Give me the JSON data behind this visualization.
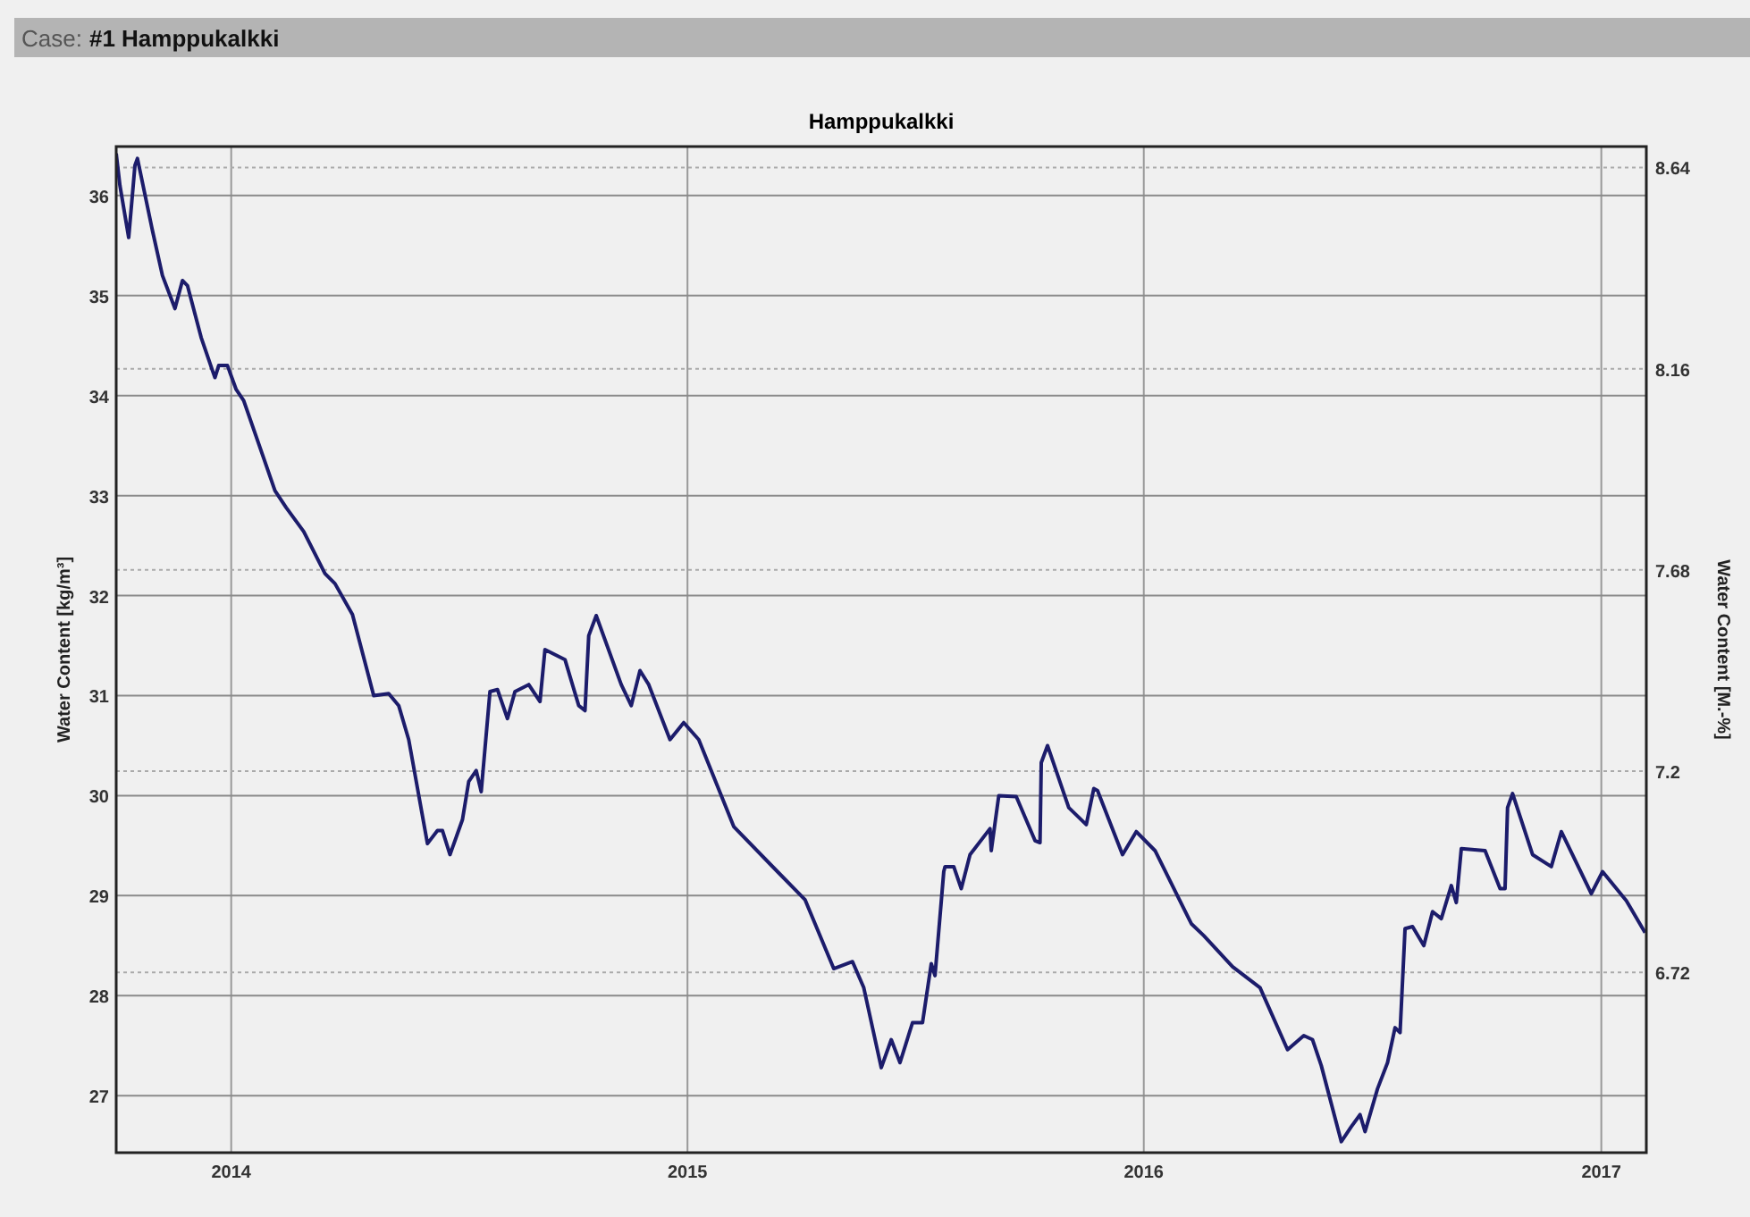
{
  "chart_data": {
    "type": "line",
    "title": "Hamppukalkki",
    "subtitle": "Case: #1 Hamppukalkki",
    "ylabel": "Water Content [kg/m³]",
    "y2label": "Water Content [M.-%]",
    "xlim": [
      "2013-10-01",
      "2017-02-06"
    ],
    "xticks": [
      {
        "value": "2014-01-01",
        "label": "2014"
      },
      {
        "value": "2015-01-01",
        "label": "2015"
      },
      {
        "value": "2016-01-01",
        "label": "2016"
      },
      {
        "value": "2017-01-01",
        "label": "2017"
      }
    ],
    "ylim": [
      26.43,
      36.49
    ],
    "yticks": [
      27,
      28,
      29,
      30,
      31,
      32,
      33,
      34,
      35,
      36
    ],
    "y2lim": [
      6.29,
      8.69
    ],
    "y2ticks": [
      6.72,
      7.2,
      7.68,
      8.16,
      8.64
    ],
    "grid": true,
    "series": [
      {
        "color": "#1c1c6b",
        "x": [
          "2013-10-01",
          "2013-10-04",
          "2013-10-11",
          "2013-10-16",
          "2013-10-18",
          "2013-10-30",
          "2013-11-07",
          "2013-11-17",
          "2013-11-23",
          "2013-11-27",
          "2013-12-08",
          "2013-12-17",
          "2013-12-19",
          "2013-12-22",
          "2013-12-29",
          "2014-01-05",
          "2014-01-11",
          "2014-02-05",
          "2014-02-14",
          "2014-02-28",
          "2014-03-17",
          "2014-03-25",
          "2014-04-08",
          "2014-04-25",
          "2014-05-07",
          "2014-05-15",
          "2014-05-23",
          "2014-06-07",
          "2014-06-15",
          "2014-06-19",
          "2014-06-25",
          "2014-07-05",
          "2014-07-10",
          "2014-07-16",
          "2014-07-20",
          "2014-07-27",
          "2014-08-02",
          "2014-08-10",
          "2014-08-16",
          "2014-08-27",
          "2014-09-05",
          "2014-09-09",
          "2014-09-25",
          "2014-10-06",
          "2014-10-11",
          "2014-10-14",
          "2014-10-20",
          "2014-11-09",
          "2014-11-17",
          "2014-11-24",
          "2014-12-01",
          "2014-12-18",
          "2014-12-29",
          "2015-01-10",
          "2015-02-07",
          "2015-03-14",
          "2015-04-05",
          "2015-04-28",
          "2015-05-13",
          "2015-05-22",
          "2015-06-05",
          "2015-06-13",
          "2015-06-20",
          "2015-06-30",
          "2015-07-08",
          "2015-07-15",
          "2015-07-18",
          "2015-07-25",
          "2015-07-26",
          "2015-08-02",
          "2015-08-08",
          "2015-08-15",
          "2015-08-31",
          "2015-09-01",
          "2015-09-07",
          "2015-09-21",
          "2015-10-06",
          "2015-10-10",
          "2015-10-11",
          "2015-10-16",
          "2015-11-02",
          "2015-11-16",
          "2015-11-22",
          "2015-11-25",
          "2015-12-15",
          "2015-12-26",
          "2016-01-10",
          "2016-02-08",
          "2016-02-18",
          "2016-03-12",
          "2016-04-03",
          "2016-04-25",
          "2016-05-08",
          "2016-05-15",
          "2016-05-22",
          "2016-06-07",
          "2016-06-15",
          "2016-06-22",
          "2016-06-26",
          "2016-07-06",
          "2016-07-14",
          "2016-07-20",
          "2016-07-24",
          "2016-07-28",
          "2016-08-03",
          "2016-08-12",
          "2016-08-19",
          "2016-08-26",
          "2016-09-03",
          "2016-09-07",
          "2016-09-11",
          "2016-09-30",
          "2016-10-12",
          "2016-10-16",
          "2016-10-18",
          "2016-10-22",
          "2016-11-07",
          "2016-11-22",
          "2016-11-30",
          "2016-12-24",
          "2017-01-02",
          "2017-01-21",
          "2017-02-05"
        ],
        "values": [
          36.42,
          36.1,
          35.58,
          36.3,
          36.37,
          35.65,
          35.2,
          34.87,
          35.15,
          35.1,
          34.58,
          34.25,
          34.18,
          34.3,
          34.3,
          34.06,
          33.95,
          33.05,
          32.88,
          32.64,
          32.22,
          32.12,
          31.81,
          31.0,
          31.02,
          30.9,
          30.56,
          29.52,
          29.65,
          29.65,
          29.41,
          29.76,
          30.14,
          30.25,
          30.04,
          31.04,
          31.06,
          30.77,
          31.04,
          31.11,
          30.94,
          31.46,
          31.36,
          30.9,
          30.85,
          31.6,
          31.8,
          31.11,
          30.9,
          31.25,
          31.11,
          30.56,
          30.73,
          30.56,
          29.69,
          29.24,
          28.96,
          28.27,
          28.34,
          28.08,
          27.28,
          27.56,
          27.33,
          27.73,
          27.73,
          28.32,
          28.2,
          29.24,
          29.29,
          29.29,
          29.07,
          29.41,
          29.67,
          29.45,
          30.0,
          29.99,
          29.55,
          29.53,
          30.33,
          30.5,
          29.88,
          29.71,
          30.07,
          30.05,
          29.41,
          29.64,
          29.45,
          28.72,
          28.6,
          28.29,
          28.08,
          27.46,
          27.6,
          27.56,
          27.3,
          26.54,
          26.69,
          26.81,
          26.64,
          27.07,
          27.33,
          27.68,
          27.63,
          28.67,
          28.69,
          28.5,
          28.84,
          28.77,
          29.1,
          28.93,
          29.47,
          29.45,
          29.07,
          29.07,
          29.88,
          30.02,
          29.41,
          29.29,
          29.64,
          29.02,
          29.24,
          28.95,
          28.63
        ]
      }
    ]
  }
}
